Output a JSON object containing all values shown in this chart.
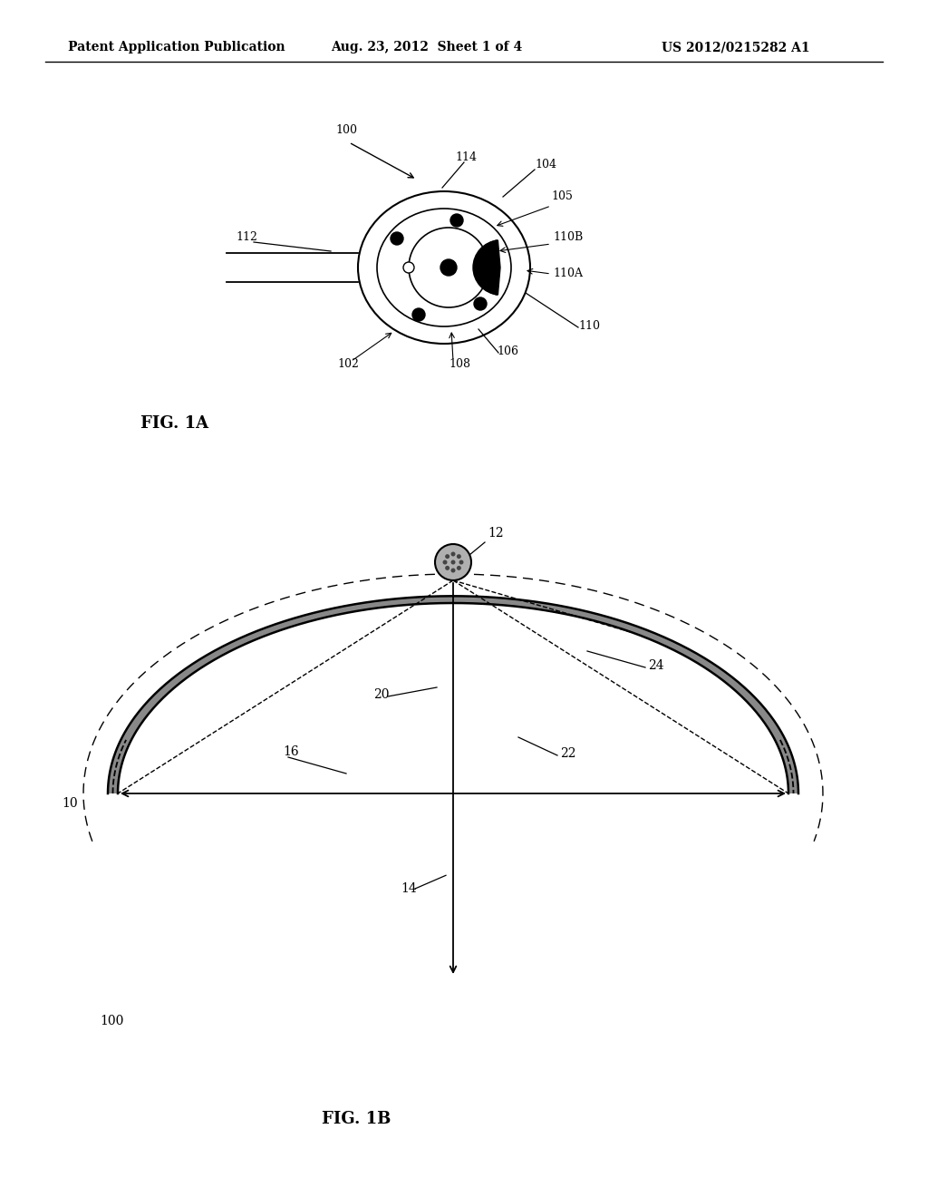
{
  "bg_color": "#ffffff",
  "header_left": "Patent Application Publication",
  "header_mid": "Aug. 23, 2012  Sheet 1 of 4",
  "header_right": "US 2012/0215282 A1",
  "fig1a_label": "FIG. 1A",
  "fig1b_label": "FIG. 1B",
  "lbl_fontsize": 9,
  "caption_fontsize": 13
}
